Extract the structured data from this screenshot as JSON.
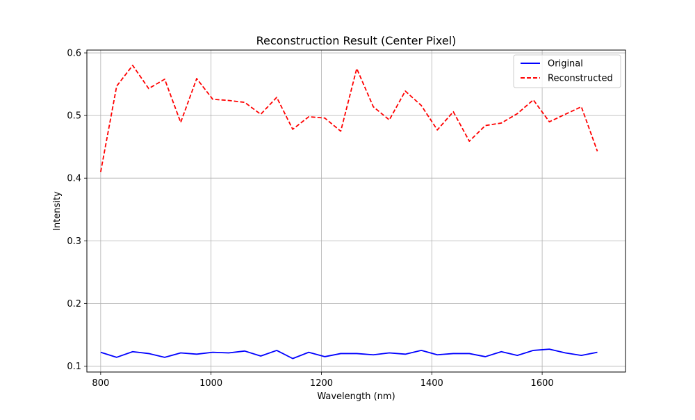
{
  "chart_data": {
    "type": "line",
    "title": "Reconstruction Result (Center Pixel)",
    "xlabel": "Wavelength (nm)",
    "ylabel": "Intensity",
    "xlim": [
      775,
      1751
    ],
    "ylim": [
      0.0905,
      0.6045
    ],
    "xticks": [
      800,
      1000,
      1200,
      1400,
      1600
    ],
    "yticks": [
      0.1,
      0.2,
      0.3,
      0.4,
      0.5,
      0.6
    ],
    "xtick_labels": [
      "800",
      "1000",
      "1200",
      "1400",
      "1600"
    ],
    "ytick_labels": [
      "0.1",
      "0.2",
      "0.3",
      "0.4",
      "0.5",
      "0.6"
    ],
    "grid": true,
    "legend_position": "top-right",
    "x": [
      800,
      829,
      858,
      887,
      916,
      945,
      974,
      1003,
      1032,
      1061,
      1090,
      1119,
      1148,
      1177,
      1206,
      1235,
      1264,
      1294,
      1323,
      1352,
      1381,
      1410,
      1439,
      1468,
      1497,
      1526,
      1555,
      1584,
      1613,
      1642,
      1671,
      1700
    ],
    "series": [
      {
        "name": "Original",
        "color": "#0000ff",
        "linestyle": "solid",
        "values": [
          0.122,
          0.114,
          0.123,
          0.12,
          0.114,
          0.121,
          0.119,
          0.122,
          0.121,
          0.124,
          0.116,
          0.125,
          0.112,
          0.122,
          0.115,
          0.12,
          0.12,
          0.118,
          0.121,
          0.119,
          0.125,
          0.118,
          0.12,
          0.12,
          0.115,
          0.123,
          0.117,
          0.125,
          0.127,
          0.121,
          0.117,
          0.122
        ]
      },
      {
        "name": "Reconstructed",
        "color": "#ff0000",
        "linestyle": "dashed",
        "values": [
          0.41,
          0.547,
          0.58,
          0.543,
          0.558,
          0.489,
          0.559,
          0.526,
          0.524,
          0.521,
          0.502,
          0.529,
          0.478,
          0.498,
          0.496,
          0.475,
          0.575,
          0.514,
          0.493,
          0.539,
          0.516,
          0.477,
          0.506,
          0.459,
          0.484,
          0.488,
          0.503,
          0.525,
          0.49,
          0.502,
          0.514,
          0.443
        ]
      }
    ]
  }
}
